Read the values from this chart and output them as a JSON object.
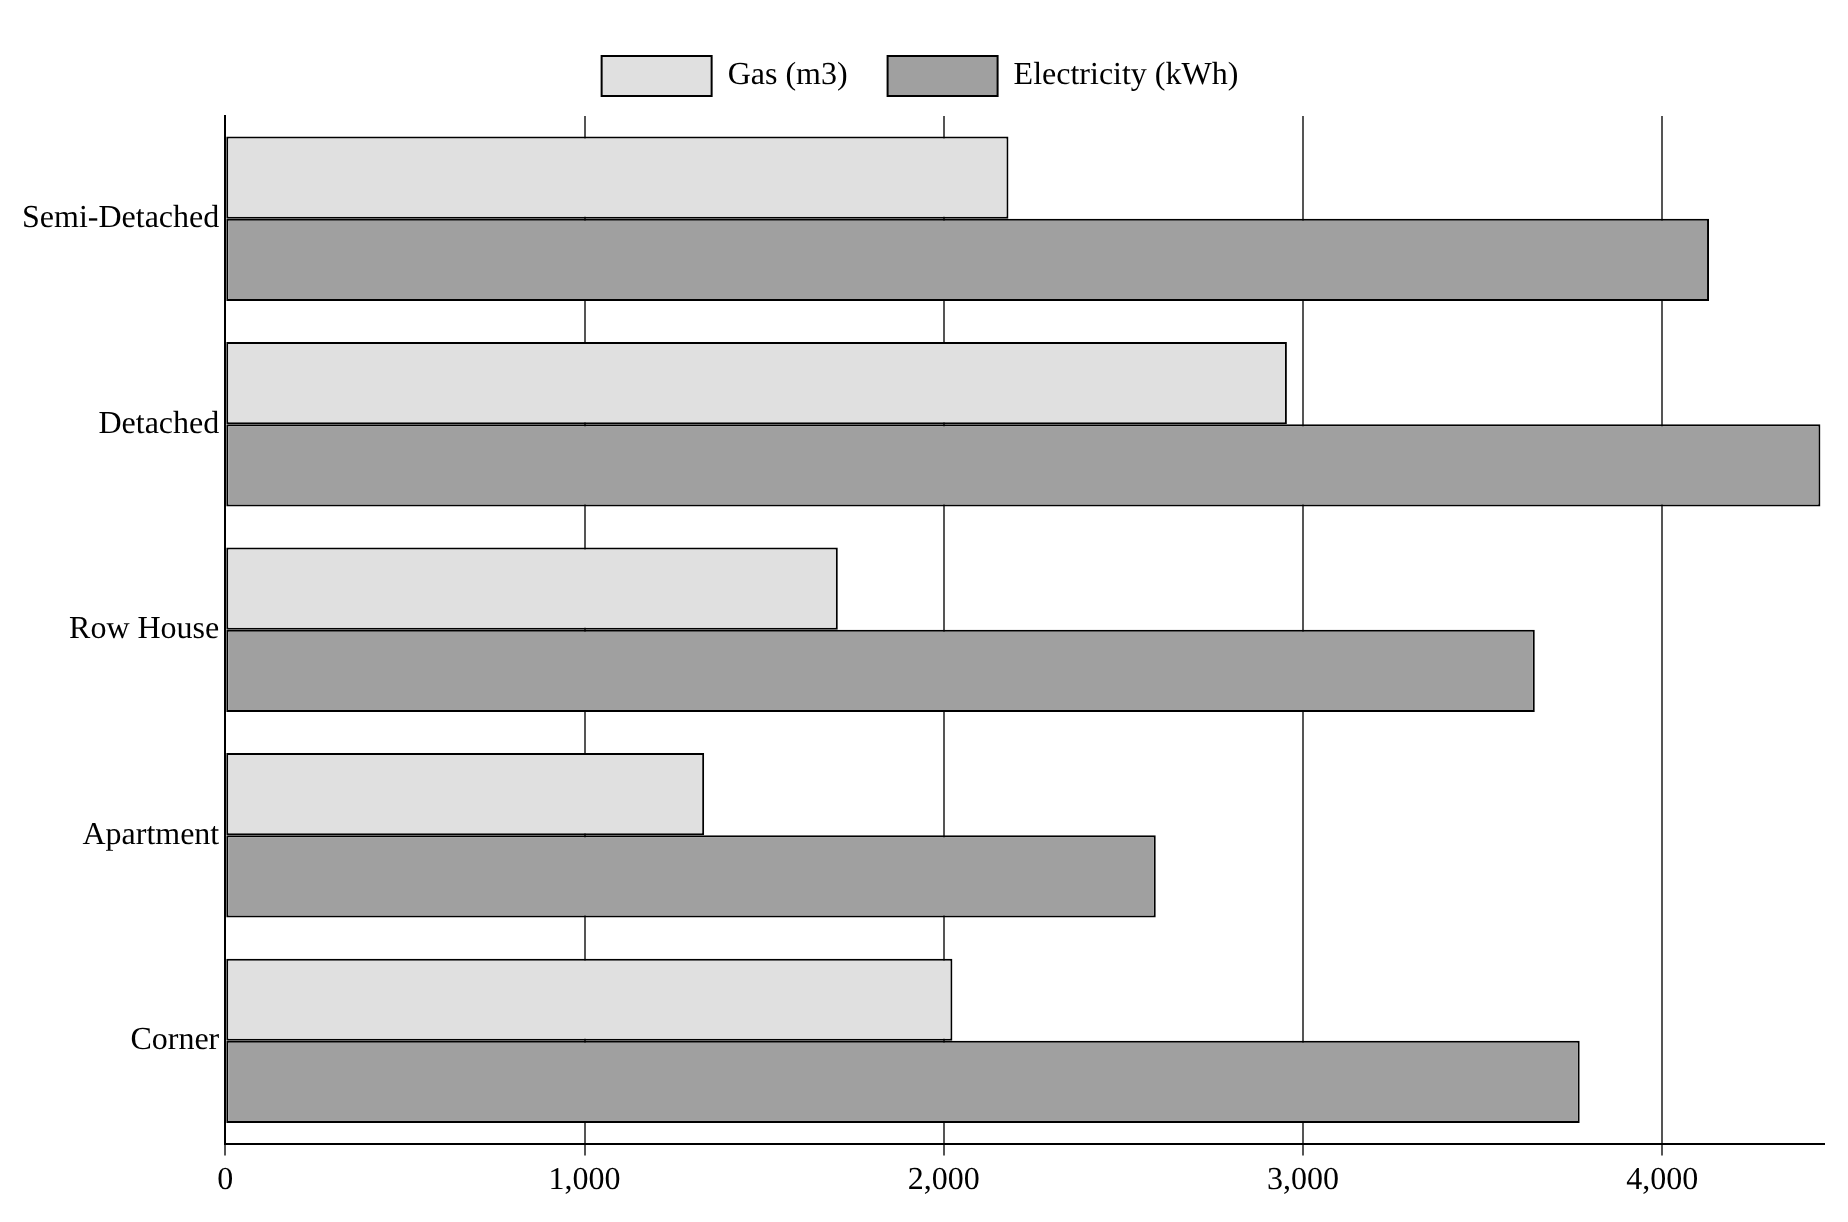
{
  "chart_data": {
    "type": "bar",
    "orientation": "horizontal",
    "categories": [
      "Semi-Detached",
      "Detached",
      "Row House",
      "Apartment",
      "Corner"
    ],
    "series": [
      {
        "name": "Gas (m3)",
        "color": "#e0e0e0",
        "values": [
          2180,
          2955,
          1705,
          1333,
          2024
        ]
      },
      {
        "name": "Electricity (kWh)",
        "color": "#a0a0a0",
        "values": [
          4130,
          4440,
          3645,
          2590,
          3770
        ]
      }
    ],
    "xlim": [
      0,
      4450
    ],
    "xticks": [
      {
        "value": 0,
        "label": "0"
      },
      {
        "value": 1000,
        "label": "1,000"
      },
      {
        "value": 2000,
        "label": "2,000"
      },
      {
        "value": 3000,
        "label": "3,000"
      },
      {
        "value": 4000,
        "label": "4,000"
      }
    ],
    "grid": "x",
    "legend": "top"
  }
}
